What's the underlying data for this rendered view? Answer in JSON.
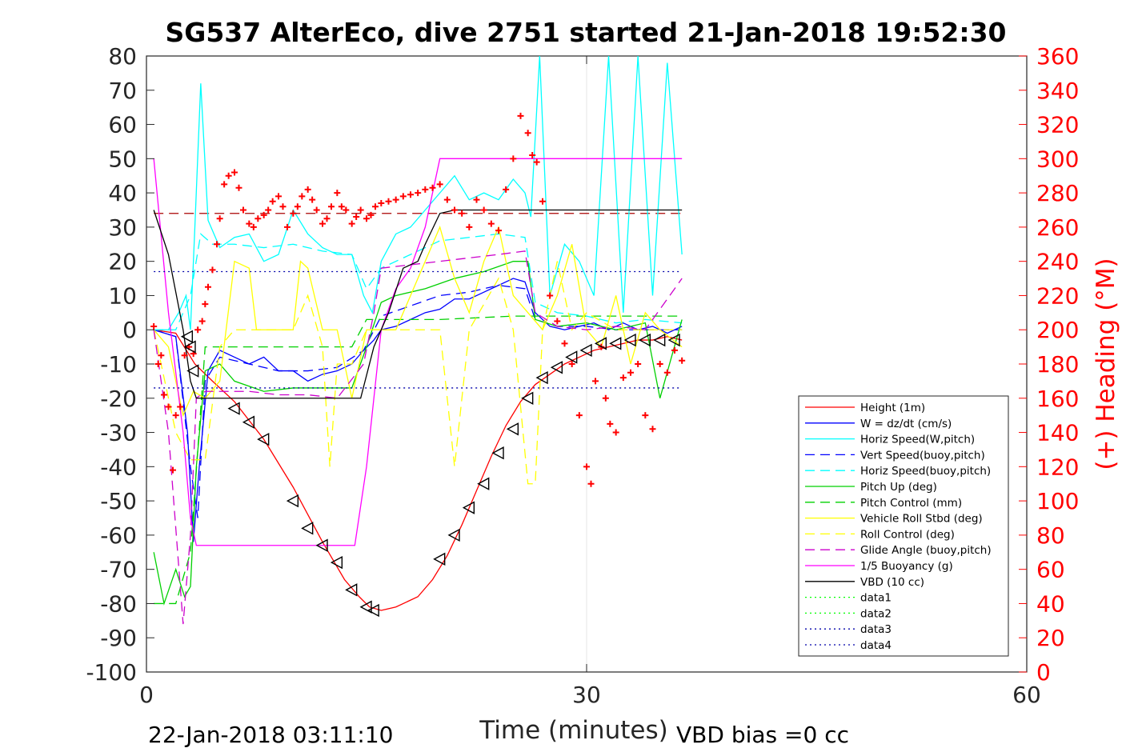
{
  "chart_data": {
    "type": "line",
    "title": "SG537 AlterEco, dive 2751 started 21-Jan-2018 19:52:30",
    "xlabel": "Time (minutes)",
    "ylabel_right": "(+) Heading (°M)",
    "xlim": [
      0,
      60
    ],
    "ylim": [
      -100,
      80
    ],
    "ylim_right": [
      0,
      360
    ],
    "xticks": [
      0,
      30,
      60
    ],
    "yticks": [
      -100,
      -90,
      -80,
      -70,
      -60,
      -50,
      -40,
      -30,
      -20,
      -10,
      0,
      10,
      20,
      30,
      40,
      50,
      60,
      70,
      80
    ],
    "yticks_right": [
      0,
      20,
      40,
      60,
      80,
      100,
      120,
      140,
      160,
      180,
      200,
      220,
      240,
      260,
      280,
      300,
      320,
      340,
      360
    ],
    "grid": "x-only at ticks",
    "legend_position": "lower-right",
    "footer_left": "22-Jan-2018 03:11:10",
    "footer_right": "VBD bias =0 cc",
    "series": [
      {
        "name": "Height (1m)",
        "color": "#ff0000",
        "style": "solid",
        "x": [
          0.5,
          2.0,
          3.3,
          4.5,
          6.0,
          8.0,
          10.0,
          12.0,
          13.5,
          14.5,
          15.2,
          16.0,
          17.0,
          18.5,
          19.5,
          20.5,
          21.5,
          22.5,
          23.5,
          24.5,
          25.5,
          26.5,
          27.5,
          28.5,
          29.5,
          30.5,
          31.5,
          32.5,
          33.5,
          34.5,
          35.5,
          36.5
        ],
        "y": [
          0,
          -1,
          -10,
          -15,
          -21,
          -32,
          -46,
          -62,
          -73,
          -78,
          -81,
          -82,
          -81,
          -78,
          -73,
          -66,
          -57,
          -47,
          -37,
          -28,
          -21,
          -16,
          -13,
          -10,
          -8,
          -6,
          -5,
          -4,
          -3,
          -3,
          -2,
          -3
        ]
      },
      {
        "name": "W = dz/dt (cm/s)",
        "color": "#0000ff",
        "style": "solid",
        "x": [
          0.5,
          2.0,
          2.8,
          3.2,
          3.6,
          4.2,
          5.0,
          6.0,
          7.0,
          8.0,
          9.0,
          10.0,
          11.0,
          12.0,
          13.0,
          14.0,
          14.8,
          15.5,
          16.0,
          17.0,
          18.0,
          19.0,
          20.0,
          21.0,
          22.0,
          23.0,
          24.0,
          25.0,
          25.8,
          26.5,
          27.5,
          28.5,
          29.5,
          30.5,
          31.5,
          32.5,
          33.5,
          34.5,
          35.5,
          36.5
        ],
        "y": [
          0,
          -2,
          -30,
          -62,
          -40,
          -12,
          -6,
          -8,
          -10,
          -8,
          -12,
          -12,
          -15,
          -13,
          -12,
          -10,
          -6,
          -3,
          0,
          1,
          3,
          5,
          6,
          9,
          9,
          11,
          13,
          15,
          14,
          5,
          1,
          0,
          1,
          2,
          0,
          2,
          0,
          1,
          -1,
          1
        ]
      },
      {
        "name": "Horiz Speed(W,pitch)",
        "color": "#00ffff",
        "style": "solid",
        "x": [
          0.5,
          1.5,
          2.2,
          2.7,
          3.0,
          3.3,
          3.7,
          4.2,
          5.0,
          6.0,
          7.0,
          8.0,
          9.0,
          10.0,
          11.0,
          12.0,
          13.0,
          14.0,
          14.8,
          15.4,
          16.0,
          17.0,
          18.0,
          19.0,
          20.0,
          21.0,
          22.0,
          23.0,
          24.0,
          25.0,
          25.8,
          26.2,
          26.8,
          27.5,
          28.5,
          29.5,
          30.5,
          31.5,
          32.5,
          33.5,
          34.5,
          35.5,
          36.5
        ],
        "y": [
          0,
          0,
          5,
          10,
          0,
          30,
          72,
          32,
          24,
          27,
          28,
          20,
          22,
          35,
          28,
          24,
          22,
          22,
          10,
          5,
          20,
          28,
          30,
          35,
          40,
          45,
          38,
          40,
          38,
          44,
          40,
          33,
          80,
          10,
          25,
          20,
          10,
          80,
          5,
          80,
          10,
          78,
          22
        ]
      },
      {
        "name": "Vert Speed(buoy,pitch)",
        "color": "#0000ff",
        "style": "dash",
        "x": [
          0.5,
          2.0,
          3.0,
          3.5,
          4.0,
          5.0,
          7.0,
          9.0,
          11.0,
          13.0,
          14.8,
          16.0,
          18.0,
          20.0,
          22.0,
          24.0,
          25.8,
          26.5,
          28.0,
          30.0,
          32.0,
          34.0,
          36.5
        ],
        "y": [
          0,
          -2,
          -40,
          -55,
          -15,
          -8,
          -10,
          -12,
          -12,
          -11,
          -6,
          4,
          7,
          10,
          11,
          13,
          12,
          3,
          1,
          1,
          0,
          0,
          0
        ]
      },
      {
        "name": "Horiz Speed(buoy,pitch)",
        "color": "#00ffff",
        "style": "dash",
        "x": [
          0.5,
          2.0,
          3.0,
          3.7,
          4.5,
          6.0,
          8.0,
          10.0,
          12.0,
          14.0,
          15.0,
          16.0,
          18.0,
          20.0,
          22.0,
          24.0,
          25.8,
          26.5,
          28.0,
          30.0,
          32.0,
          34.0,
          36.5
        ],
        "y": [
          0,
          0,
          10,
          28,
          25,
          25,
          24,
          25,
          23,
          22,
          12,
          18,
          22,
          26,
          27,
          28,
          27,
          8,
          5,
          4,
          2,
          3,
          2
        ]
      },
      {
        "name": "Pitch Up (deg)",
        "color": "#00d000",
        "style": "solid",
        "x": [
          0.5,
          1.2,
          2.0,
          2.6,
          3.0,
          3.4,
          4.0,
          5.0,
          6.0,
          8.0,
          10.0,
          12.0,
          14.0,
          15.0,
          16.0,
          17.0,
          19.0,
          21.0,
          23.0,
          25.0,
          26.0,
          26.5,
          28.0,
          30.0,
          32.0,
          34.0,
          35.0,
          36.5
        ],
        "y": [
          -65,
          -80,
          -70,
          -78,
          -75,
          -40,
          -12,
          -10,
          -15,
          -18,
          -17,
          -17,
          -17,
          -5,
          8,
          10,
          12,
          15,
          17,
          20,
          20,
          3,
          1,
          2,
          0,
          2,
          -20,
          3
        ]
      },
      {
        "name": "Pitch Control (mm)",
        "color": "#00d000",
        "style": "dash",
        "x": [
          0.5,
          2.0,
          3.0,
          4.0,
          6.0,
          10.0,
          14.0,
          15.0,
          16.0,
          20.0,
          25.0,
          26.0,
          36.5
        ],
        "y": [
          -80,
          -80,
          -65,
          -5,
          -5,
          -5,
          -5,
          3,
          3,
          3,
          4,
          4,
          4
        ]
      },
      {
        "name": "Vehicle Roll Stbd (deg)",
        "color": "#ffff00",
        "style": "solid",
        "x": [
          0.5,
          1.5,
          2.5,
          3.2,
          4.0,
          5.0,
          6.0,
          7.0,
          7.5,
          8.0,
          9.0,
          10.0,
          10.5,
          11.0,
          12.0,
          13.0,
          14.0,
          15.0,
          16.0,
          17.0,
          18.0,
          19.0,
          20.0,
          21.0,
          22.0,
          23.0,
          24.0,
          25.0,
          26.0,
          27.0,
          28.0,
          29.0,
          30.0,
          31.0,
          32.0,
          33.0,
          34.0,
          35.0,
          36.5
        ],
        "y": [
          0,
          -5,
          -25,
          -18,
          -20,
          -15,
          20,
          18,
          0,
          0,
          0,
          0,
          20,
          18,
          0,
          0,
          -20,
          0,
          0,
          0,
          10,
          20,
          30,
          15,
          5,
          20,
          30,
          10,
          5,
          0,
          10,
          25,
          0,
          -5,
          10,
          -10,
          5,
          0,
          -5
        ]
      },
      {
        "name": "Roll Control (deg)",
        "color": "#ffff00",
        "style": "dash",
        "x": [
          0.5,
          2.0,
          3.0,
          4.0,
          5.0,
          6.0,
          8.0,
          10.0,
          11.0,
          12.0,
          12.5,
          13.0,
          14.0,
          15.0,
          16.0,
          18.0,
          20.0,
          21.0,
          22.0,
          24.0,
          25.0,
          26.0,
          26.5,
          27.0,
          28.0,
          29.0,
          30.0,
          32.0,
          34.0,
          36.5
        ],
        "y": [
          0,
          -30,
          -38,
          -38,
          -5,
          0,
          0,
          0,
          10,
          -5,
          -40,
          -10,
          -10,
          0,
          0,
          0,
          0,
          -40,
          0,
          15,
          0,
          -45,
          -45,
          0,
          20,
          0,
          5,
          0,
          0,
          0
        ]
      },
      {
        "name": "Glide Angle (buoy,pitch)",
        "color": "#cc00cc",
        "style": "dash",
        "x": [
          0.5,
          1.5,
          2.5,
          3.0,
          3.4,
          4.0,
          5.0,
          7.0,
          9.0,
          11.0,
          13.0,
          14.8,
          15.5,
          16.0,
          18.0,
          20.0,
          22.0,
          24.0,
          25.8,
          26.5,
          28.0,
          30.0,
          32.0,
          34.0,
          36.5
        ],
        "y": [
          0,
          -30,
          -86,
          -60,
          -20,
          -18,
          -18,
          -18,
          -19,
          -19,
          -20,
          -10,
          5,
          18,
          19,
          20,
          21,
          22,
          23,
          5,
          1,
          0,
          1,
          0,
          15
        ]
      },
      {
        "name": "1/5 Buoyancy (g)",
        "color": "#ff00ff",
        "style": "solid",
        "x": [
          0.5,
          1.5,
          2.5,
          3.0,
          3.4,
          5.0,
          8.0,
          11.0,
          14.0,
          14.2,
          15.0,
          16.0,
          17.0,
          18.0,
          19.0,
          20.0,
          21.0,
          23.0,
          25.0,
          27.0,
          29.0,
          31.0,
          33.0,
          35.0,
          36.5
        ],
        "y": [
          50,
          5,
          -30,
          -55,
          -63,
          -63,
          -63,
          -63,
          -63,
          -63,
          -40,
          0,
          12,
          18,
          30,
          50,
          50,
          50,
          50,
          50,
          50,
          50,
          50,
          50,
          50
        ]
      },
      {
        "name": "VBD (10 cc)",
        "color": "#000000",
        "style": "solid",
        "x": [
          0.5,
          1.5,
          2.5,
          3.0,
          3.4,
          6.0,
          10.0,
          14.0,
          14.6,
          15.5,
          16.5,
          17.5,
          18.5,
          19.0,
          20.0,
          21.0,
          23.0,
          25.0,
          27.0,
          30.0,
          33.0,
          36.5
        ],
        "y": [
          35,
          22,
          0,
          -15,
          -20,
          -20,
          -20,
          -20,
          -20,
          -5,
          5,
          18,
          20,
          25,
          34,
          35,
          35,
          35,
          35,
          35,
          35,
          35
        ]
      },
      {
        "name": "data1",
        "color": "#00ff00",
        "style": "dot",
        "x": [],
        "y": []
      },
      {
        "name": "data2",
        "color": "#00ff00",
        "style": "dot",
        "x": [],
        "y": []
      },
      {
        "name": "data3",
        "color": "#0000aa",
        "style": "dot",
        "x": [
          0.5,
          36.5
        ],
        "y": [
          17,
          17
        ]
      },
      {
        "name": "data4",
        "color": "#0000aa",
        "style": "dot",
        "x": [
          0.5,
          36.5
        ],
        "y": [
          -17,
          -17
        ]
      }
    ],
    "reference_line": {
      "y": 34,
      "color": "#aa0000",
      "style": "dash",
      "x": [
        0.5,
        36.5
      ]
    },
    "heading_points": {
      "marker": "+",
      "color": "#ff0000",
      "x": [
        0.5,
        0.8,
        1.0,
        1.2,
        1.5,
        1.8,
        2.0,
        2.3,
        2.6,
        2.9,
        3.2,
        3.5,
        3.8,
        4.0,
        4.2,
        4.5,
        4.8,
        5.0,
        5.3,
        5.6,
        6.0,
        6.3,
        6.6,
        7.0,
        7.3,
        7.6,
        8.0,
        8.3,
        8.6,
        9.0,
        9.3,
        9.6,
        10.0,
        10.3,
        10.6,
        11.0,
        11.3,
        11.6,
        12.0,
        12.3,
        12.6,
        13.0,
        13.3,
        13.6,
        14.0,
        14.3,
        14.6,
        15.0,
        15.3,
        15.6,
        16.0,
        16.5,
        17.0,
        17.5,
        18.0,
        18.5,
        19.0,
        19.5,
        20.0,
        20.5,
        21.0,
        21.5,
        22.0,
        22.5,
        23.0,
        23.5,
        24.0,
        24.5,
        25.0,
        25.5,
        26.0,
        26.3,
        26.6,
        27.0,
        27.5,
        28.0,
        28.5,
        29.0,
        29.5,
        30.0,
        30.3,
        30.6,
        31.0,
        31.3,
        31.6,
        32.0,
        32.5,
        33.0,
        33.5,
        34.0,
        34.5,
        35.0,
        35.5,
        36.0,
        36.5
      ],
      "y": [
        202,
        180,
        185,
        162,
        155,
        118,
        150,
        155,
        185,
        190,
        186,
        200,
        205,
        215,
        225,
        235,
        250,
        265,
        285,
        290,
        292,
        283,
        270,
        262,
        260,
        265,
        267,
        270,
        275,
        278,
        272,
        260,
        268,
        272,
        278,
        282,
        276,
        270,
        262,
        265,
        272,
        280,
        272,
        270,
        262,
        266,
        270,
        265,
        267,
        272,
        274,
        275,
        276,
        278,
        279,
        280,
        282,
        283,
        285,
        276,
        270,
        268,
        260,
        276,
        270,
        262,
        258,
        282,
        300,
        325,
        315,
        302,
        298,
        275,
        220,
        205,
        192,
        180,
        150,
        120,
        110,
        170,
        190,
        160,
        145,
        140,
        172,
        175,
        180,
        150,
        142,
        180,
        175,
        188,
        182
      ]
    },
    "profile_markers": {
      "marker": "triangle",
      "color": "#000000",
      "x": [
        2.8,
        3.0,
        3.2,
        6.0,
        7.0,
        8.0,
        10.0,
        11.0,
        12.0,
        13.0,
        14.0,
        15.0,
        15.5,
        20.0,
        21.0,
        22.0,
        23.0,
        24.0,
        25.0,
        26.0,
        27.0,
        28.0,
        29.0,
        30.0,
        31.0,
        32.0,
        33.0,
        34.0,
        35.0,
        36.0
      ],
      "y": [
        -2,
        -5,
        -12,
        -23,
        -27,
        -32,
        -50,
        -58,
        -63,
        -68,
        -76,
        -81,
        -82,
        -67,
        -60,
        -52,
        -45,
        -36,
        -29,
        -20,
        -14,
        -11,
        -8,
        -6,
        -4,
        -4,
        -3,
        -3,
        -3,
        -3
      ]
    }
  }
}
